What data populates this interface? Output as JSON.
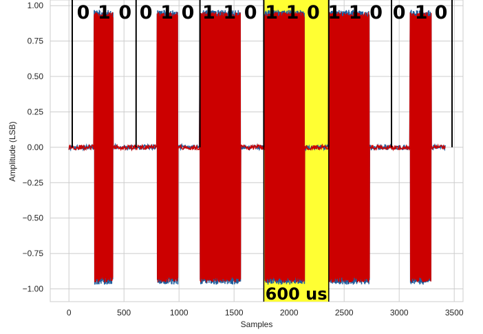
{
  "chart_data": {
    "type": "line",
    "title": "",
    "xlabel": "Samples",
    "ylabel": "Amplitude (LSB)",
    "xlim": [
      -170,
      3580
    ],
    "ylim": [
      -1.09,
      1.04
    ],
    "x_ticks": [
      0,
      500,
      1000,
      1500,
      2000,
      2500,
      3000,
      3500
    ],
    "x_tick_labels": [
      "0",
      "500",
      "1000",
      "1500",
      "2000",
      "2500",
      "3000",
      "3500"
    ],
    "y_ticks": [
      1.0,
      0.75,
      0.5,
      0.25,
      0.0,
      -0.25,
      -0.5,
      -0.75,
      -1.0
    ],
    "y_tick_labels": [
      "1.00",
      "0.75",
      "0.50",
      "0.25",
      "0.00",
      "−0.25",
      "−0.50",
      "−0.75",
      "−1.00"
    ],
    "grid": true,
    "bursts": [
      {
        "start": 230,
        "end": 400,
        "amplitude": 0.97
      },
      {
        "start": 800,
        "end": 990,
        "amplitude": 0.97
      },
      {
        "start": 1190,
        "end": 1560,
        "amplitude": 0.97
      },
      {
        "start": 1780,
        "end": 2140,
        "amplitude": 0.97
      },
      {
        "start": 2360,
        "end": 2730,
        "amplitude": 0.97
      },
      {
        "start": 3100,
        "end": 3290,
        "amplitude": 0.97
      }
    ],
    "signal_span": [
      0,
      3420
    ],
    "series_colors": {
      "underlay": "#1f5f9f",
      "overlay": "#cc0000"
    },
    "bit_boundaries": [
      30,
      610,
      1190,
      1770,
      2360,
      2930,
      3480
    ],
    "highlight_region": {
      "start": 1770,
      "end": 2360,
      "color": "#ffff33"
    },
    "bits": [
      {
        "label": "0",
        "x": 130
      },
      {
        "label": "1",
        "x": 320
      },
      {
        "label": "0",
        "x": 510
      },
      {
        "label": "0",
        "x": 700
      },
      {
        "label": "1",
        "x": 890
      },
      {
        "label": "0",
        "x": 1080
      },
      {
        "label": "1",
        "x": 1270
      },
      {
        "label": "1",
        "x": 1460
      },
      {
        "label": "0",
        "x": 1650
      },
      {
        "label": "1",
        "x": 1840
      },
      {
        "label": "1",
        "x": 2030
      },
      {
        "label": "0",
        "x": 2220
      },
      {
        "label": "1",
        "x": 2410
      },
      {
        "label": "1",
        "x": 2600
      },
      {
        "label": "0",
        "x": 2790
      },
      {
        "label": "0",
        "x": 3000
      },
      {
        "label": "1",
        "x": 3200
      },
      {
        "label": "0",
        "x": 3380
      }
    ],
    "annotation": {
      "text": "600 us",
      "x_center": 2065
    },
    "colors": {
      "highlight": "#ffff33",
      "signal_red": "#cc0000",
      "signal_blue": "#1f5f9f",
      "grid": "#cccccc",
      "boundary": "#000000"
    }
  }
}
